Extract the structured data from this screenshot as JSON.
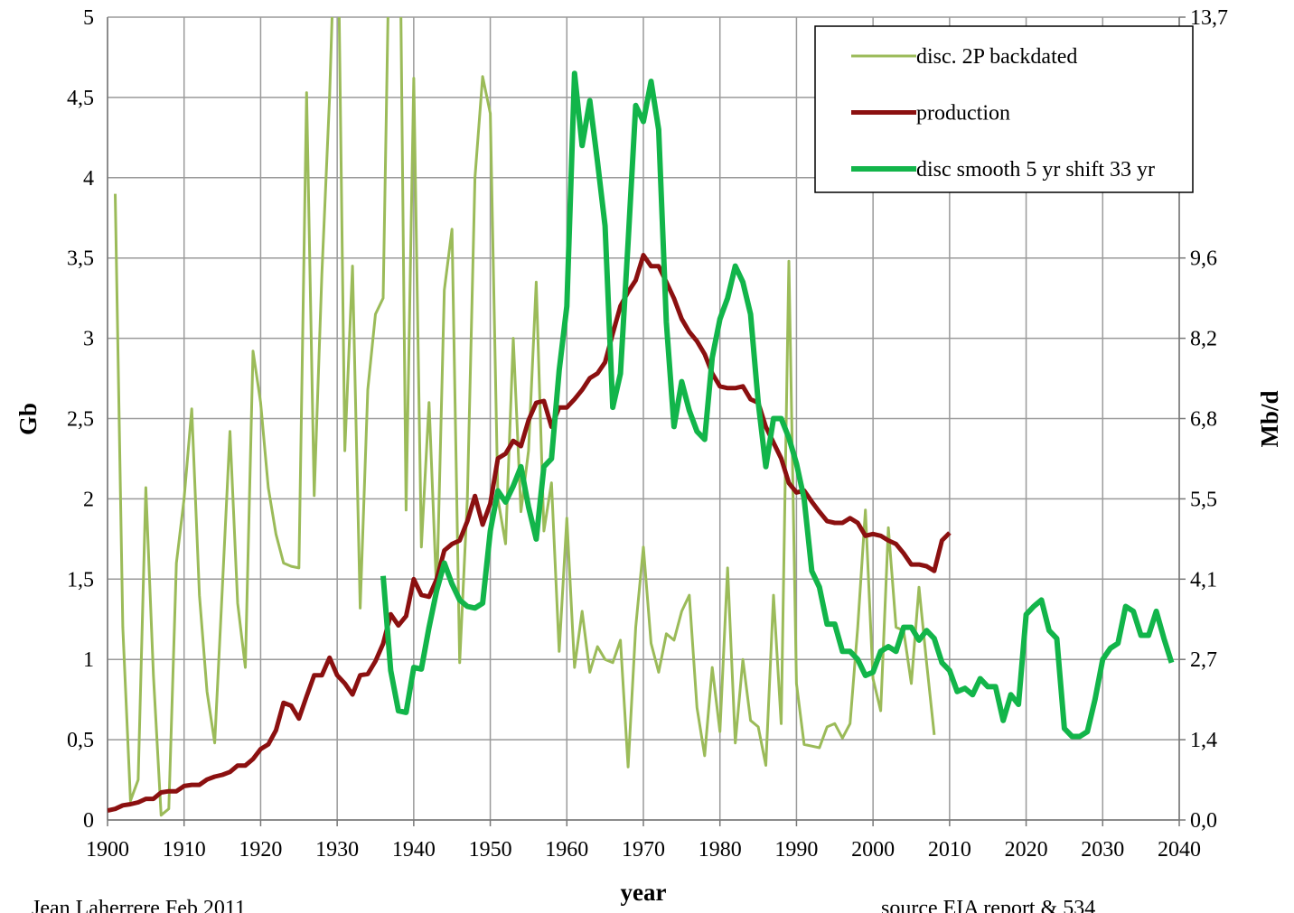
{
  "chart_data": {
    "type": "line",
    "y_label": "Gb",
    "y2_label": "Mb/d",
    "x_label": "year",
    "annotations": [
      "Jean Laherrere Feb 2011",
      "source EIA report & 534"
    ],
    "xlim": [
      1900,
      2040
    ],
    "xticks": [
      1900,
      1910,
      1920,
      1930,
      1940,
      1950,
      1960,
      1970,
      1980,
      1990,
      2000,
      2010,
      2020,
      2030,
      2040
    ],
    "ylim": [
      0,
      5
    ],
    "yticks": [
      0,
      {
        "value": 0.5,
        "label": "0,5"
      },
      1,
      {
        "value": 1.5,
        "label": "1,5"
      },
      2,
      {
        "value": 2.5,
        "label": "2,5"
      },
      3,
      {
        "value": 3.5,
        "label": "3,5"
      },
      4,
      {
        "value": 4.5,
        "label": "4,5"
      },
      5
    ],
    "y2lim": [
      0,
      13.7
    ],
    "y2ticks": [
      {
        "value": 0,
        "label": "0,0"
      },
      {
        "value": 1.37,
        "label": "1,4"
      },
      {
        "value": 2.74,
        "label": "2,7"
      },
      {
        "value": 4.11,
        "label": "4,1"
      },
      {
        "value": 5.48,
        "label": "5,5"
      },
      {
        "value": 6.85,
        "label": "6,8"
      },
      {
        "value": 8.22,
        "label": "8,2"
      },
      {
        "value": 9.59,
        "label": "9,6"
      },
      {
        "value": 13.7,
        "label": "13,7"
      }
    ],
    "grid": true,
    "legend": "upper right",
    "series": [
      {
        "name": "disc. 2P backdated",
        "color": "#9bbb59",
        "x": [
          1901,
          1902,
          1903,
          1904,
          1905,
          1906,
          1907,
          1908,
          1909,
          1910,
          1911,
          1912,
          1913,
          1914,
          1915,
          1916,
          1917,
          1918,
          1919,
          1920,
          1921,
          1922,
          1923,
          1924,
          1925,
          1926,
          1927,
          1928,
          1929,
          1930,
          1931,
          1932,
          1933,
          1934,
          1935,
          1936,
          1937,
          1938,
          1939,
          1940,
          1941,
          1942,
          1943,
          1944,
          1945,
          1946,
          1947,
          1948,
          1949,
          1950,
          1951,
          1952,
          1953,
          1954,
          1955,
          1956,
          1957,
          1958,
          1959,
          1960,
          1961,
          1962,
          1963,
          1964,
          1965,
          1966,
          1967,
          1968,
          1969,
          1970,
          1971,
          1972,
          1973,
          1974,
          1975,
          1976,
          1977,
          1978,
          1979,
          1980,
          1981,
          1982,
          1983,
          1984,
          1985,
          1986,
          1987,
          1988,
          1989,
          1990,
          1991,
          1992,
          1993,
          1994,
          1995,
          1996,
          1997,
          1998,
          1999,
          2000,
          2001,
          2002,
          2003,
          2004,
          2005,
          2006,
          2007,
          2008
        ],
        "values": [
          3.9,
          1.2,
          0.12,
          0.25,
          2.07,
          0.9,
          0.03,
          0.07,
          1.6,
          2.0,
          2.56,
          1.4,
          0.8,
          0.48,
          1.45,
          2.42,
          1.35,
          0.95,
          2.92,
          2.6,
          2.07,
          1.78,
          1.6,
          1.58,
          1.57,
          4.53,
          2.02,
          3.4,
          4.5,
          6.0,
          2.3,
          3.45,
          1.32,
          2.68,
          3.15,
          3.25,
          6.0,
          6.5,
          1.93,
          4.62,
          1.7,
          2.6,
          1.4,
          3.3,
          3.68,
          0.98,
          2.0,
          4.0,
          4.63,
          4.4,
          2.0,
          1.72,
          3.0,
          1.92,
          2.3,
          3.35,
          1.8,
          2.1,
          1.05,
          1.88,
          0.95,
          1.3,
          0.92,
          1.08,
          1.0,
          0.98,
          1.12,
          0.33,
          1.2,
          1.7,
          1.1,
          0.92,
          1.16,
          1.12,
          1.3,
          1.4,
          0.7,
          0.4,
          0.95,
          0.55,
          1.57,
          0.48,
          1.0,
          0.62,
          0.58,
          0.34,
          1.4,
          0.6,
          3.48,
          0.85,
          0.47,
          0.46,
          0.45,
          0.58,
          0.6,
          0.51,
          0.6,
          1.2,
          1.93,
          0.88,
          0.68,
          1.82,
          1.2,
          1.18,
          0.85,
          1.45,
          0.98,
          0.53
        ]
      },
      {
        "name": "production",
        "color": "#8b1010",
        "axis": "y2",
        "x": [
          1900,
          1901,
          1902,
          1903,
          1904,
          1905,
          1906,
          1907,
          1908,
          1909,
          1910,
          1911,
          1912,
          1913,
          1914,
          1915,
          1916,
          1917,
          1918,
          1919,
          1920,
          1921,
          1922,
          1923,
          1924,
          1925,
          1926,
          1927,
          1928,
          1929,
          1930,
          1931,
          1932,
          1933,
          1934,
          1935,
          1936,
          1937,
          1938,
          1939,
          1940,
          1941,
          1942,
          1943,
          1944,
          1945,
          1946,
          1947,
          1948,
          1949,
          1950,
          1951,
          1952,
          1953,
          1954,
          1955,
          1956,
          1957,
          1958,
          1959,
          1960,
          1961,
          1962,
          1963,
          1964,
          1965,
          1966,
          1967,
          1968,
          1969,
          1970,
          1971,
          1972,
          1973,
          1974,
          1975,
          1976,
          1977,
          1978,
          1979,
          1980,
          1981,
          1982,
          1983,
          1984,
          1985,
          1986,
          1987,
          1988,
          1989,
          1990,
          1991,
          1992,
          1993,
          1994,
          1995,
          1996,
          1997,
          1998,
          1999,
          2000,
          2001,
          2002,
          2003,
          2004,
          2005,
          2006,
          2007,
          2008,
          2009,
          2010
        ],
        "values": [
          0.16,
          0.19,
          0.25,
          0.27,
          0.3,
          0.36,
          0.36,
          0.47,
          0.49,
          0.49,
          0.58,
          0.6,
          0.6,
          0.69,
          0.74,
          0.77,
          0.82,
          0.93,
          0.93,
          1.04,
          1.21,
          1.29,
          1.53,
          2.0,
          1.95,
          1.73,
          2.11,
          2.47,
          2.47,
          2.77,
          2.47,
          2.33,
          2.14,
          2.47,
          2.49,
          2.71,
          3.01,
          3.51,
          3.32,
          3.48,
          4.11,
          3.84,
          3.81,
          4.11,
          4.6,
          4.71,
          4.77,
          5.1,
          5.53,
          5.04,
          5.4,
          6.17,
          6.25,
          6.47,
          6.38,
          6.82,
          7.12,
          7.15,
          6.71,
          7.04,
          7.04,
          7.18,
          7.34,
          7.54,
          7.62,
          7.81,
          8.3,
          8.77,
          9.01,
          9.21,
          9.64,
          9.45,
          9.45,
          9.18,
          8.9,
          8.55,
          8.33,
          8.17,
          7.95,
          7.62,
          7.4,
          7.37,
          7.37,
          7.4,
          7.18,
          7.12,
          6.71,
          6.44,
          6.17,
          5.75,
          5.59,
          5.62,
          5.43,
          5.26,
          5.1,
          5.07,
          5.07,
          5.15,
          5.07,
          4.85,
          4.88,
          4.85,
          4.77,
          4.71,
          4.55,
          4.36,
          4.36,
          4.33,
          4.25,
          4.77,
          4.9
        ]
      },
      {
        "name": "disc smooth 5 yr shift 33 yr",
        "color": "#12b54a",
        "x": [
          1936,
          1937,
          1938,
          1939,
          1940,
          1941,
          1942,
          1943,
          1944,
          1945,
          1946,
          1947,
          1948,
          1949,
          1950,
          1951,
          1952,
          1953,
          1954,
          1955,
          1956,
          1957,
          1958,
          1959,
          1960,
          1961,
          1962,
          1963,
          1964,
          1965,
          1966,
          1967,
          1968,
          1969,
          1970,
          1971,
          1972,
          1973,
          1974,
          1975,
          1976,
          1977,
          1978,
          1979,
          1980,
          1981,
          1982,
          1983,
          1984,
          1985,
          1986,
          1987,
          1988,
          1989,
          1990,
          1991,
          1992,
          1993,
          1994,
          1995,
          1996,
          1997,
          1998,
          1999,
          2000,
          2001,
          2002,
          2003,
          2004,
          2005,
          2006,
          2007,
          2008,
          2009,
          2010,
          2011,
          2012,
          2013,
          2014,
          2015,
          2016,
          2017,
          2018,
          2019,
          2020,
          2021,
          2022,
          2023,
          2024,
          2025,
          2026,
          2027,
          2028,
          2029,
          2030,
          2031,
          2032,
          2033,
          2034,
          2035,
          2036,
          2037,
          2038,
          2039
        ],
        "values": [
          1.52,
          0.93,
          0.68,
          0.67,
          0.95,
          0.94,
          1.2,
          1.43,
          1.6,
          1.47,
          1.37,
          1.33,
          1.32,
          1.35,
          1.8,
          2.05,
          1.98,
          2.08,
          2.2,
          1.95,
          1.75,
          2.2,
          2.25,
          2.8,
          3.2,
          4.65,
          4.2,
          4.48,
          4.1,
          3.7,
          2.57,
          2.78,
          3.6,
          4.45,
          4.35,
          4.6,
          4.3,
          3.1,
          2.45,
          2.73,
          2.55,
          2.42,
          2.37,
          2.88,
          3.12,
          3.25,
          3.45,
          3.35,
          3.15,
          2.6,
          2.2,
          2.5,
          2.5,
          2.38,
          2.22,
          2.0,
          1.55,
          1.45,
          1.22,
          1.22,
          1.05,
          1.05,
          1.0,
          0.9,
          0.92,
          1.05,
          1.08,
          1.05,
          1.2,
          1.2,
          1.12,
          1.18,
          1.13,
          0.98,
          0.93,
          0.8,
          0.82,
          0.78,
          0.88,
          0.83,
          0.83,
          0.62,
          0.78,
          0.72,
          1.28,
          1.33,
          1.37,
          1.18,
          1.13,
          0.57,
          0.52,
          0.52,
          0.55,
          0.75,
          1.0,
          1.07,
          1.1,
          1.33,
          1.3,
          1.15,
          1.15,
          1.3,
          1.13,
          0.98
        ]
      }
    ]
  }
}
